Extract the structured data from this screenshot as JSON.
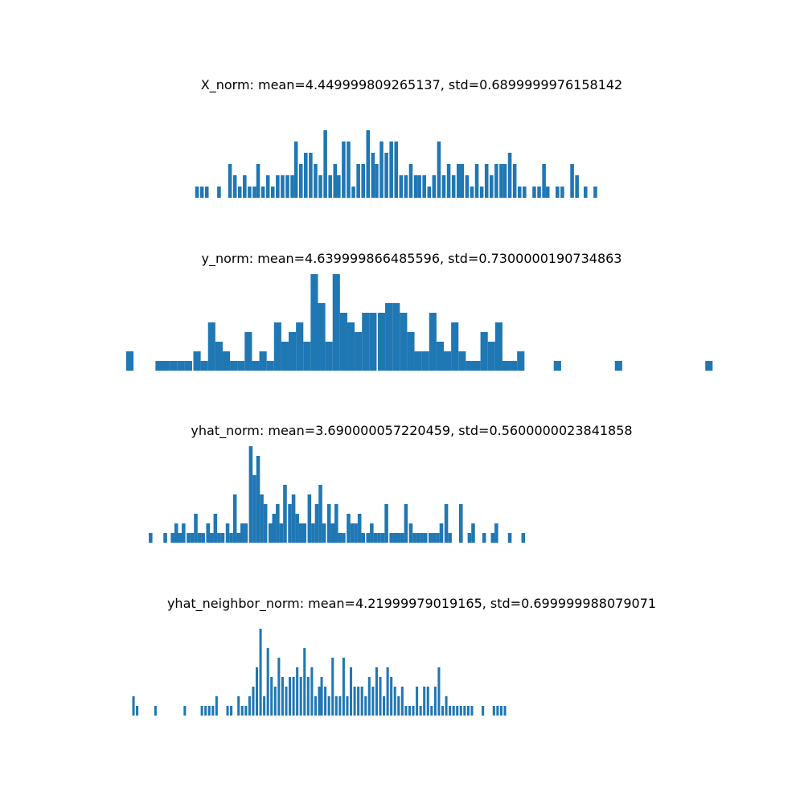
{
  "colors": {
    "bar": "#1f77b4",
    "background": "#ffffff"
  },
  "chart_data": [
    {
      "type": "bar",
      "title": "X_norm: mean=4.449999809265137, std=0.6899999976158142",
      "axis_visible": false,
      "grid": false,
      "x": [
        -0.41,
        -0.37,
        -0.33,
        -0.23,
        -0.14,
        -0.1,
        -0.06,
        -0.02,
        0.02,
        0.06,
        0.09,
        0.13,
        0.17,
        0.21,
        0.25,
        0.29,
        0.33,
        0.37,
        0.4,
        0.44,
        0.48,
        0.52,
        0.56,
        0.6,
        0.64,
        0.68,
        0.72,
        0.75,
        0.79,
        0.83,
        0.87,
        0.91,
        0.95,
        0.99,
        1.03,
        1.06,
        1.1,
        1.14,
        1.18,
        1.22,
        1.26,
        1.3,
        1.34,
        1.38,
        1.41,
        1.45,
        1.49,
        1.53,
        1.57,
        1.61,
        1.65,
        1.69,
        1.73,
        1.76,
        1.8,
        1.84,
        1.88,
        1.92,
        1.96,
        2.0,
        2.04,
        2.08,
        2.11,
        2.15,
        2.19,
        2.23,
        2.27,
        2.35,
        2.39,
        2.43,
        2.46,
        2.54,
        2.58,
        2.66,
        2.7,
        2.77,
        2.85
      ],
      "values": [
        1,
        1,
        1,
        1,
        3,
        2,
        1,
        2,
        1,
        1,
        3,
        1,
        2,
        1,
        2,
        2,
        2,
        2,
        5,
        3,
        4,
        4,
        3,
        2,
        6,
        2,
        3,
        2,
        5,
        5,
        1,
        3,
        3,
        6,
        4,
        3,
        5,
        4,
        5,
        5,
        2,
        2,
        3,
        2,
        2,
        2,
        1,
        2,
        5,
        2,
        3,
        2,
        3,
        3,
        2,
        1,
        3,
        1,
        3,
        2,
        3,
        3,
        3,
        4,
        3,
        1,
        1,
        1,
        1,
        3,
        1,
        1,
        1,
        3,
        2,
        1,
        1
      ],
      "ylim": [
        0,
        6
      ]
    },
    {
      "type": "bar",
      "title": "y_norm: mean=4.639999866485596, std=0.7300000190734863",
      "axis_visible": false,
      "grid": false,
      "x": [
        -0.96,
        -0.72,
        -0.66,
        -0.6,
        -0.54,
        -0.48,
        -0.41,
        -0.35,
        -0.29,
        -0.23,
        -0.17,
        -0.11,
        -0.05,
        0.01,
        0.07,
        0.13,
        0.19,
        0.25,
        0.31,
        0.37,
        0.43,
        0.49,
        0.55,
        0.61,
        0.67,
        0.73,
        0.79,
        0.85,
        0.91,
        0.97,
        1.03,
        1.1,
        1.16,
        1.22,
        1.28,
        1.34,
        1.4,
        1.46,
        1.52,
        1.58,
        1.64,
        1.7,
        1.76,
        1.82,
        1.88,
        1.94,
        2.0,
        2.06,
        2.12,
        2.18,
        2.24,
        2.54,
        3.04,
        3.78
      ],
      "values": [
        2,
        1,
        1,
        1,
        1,
        1,
        2,
        1,
        5,
        3,
        2,
        1,
        1,
        4,
        1,
        2,
        1,
        5,
        3,
        4,
        5,
        3,
        10,
        7,
        3,
        10,
        6,
        5,
        4,
        6,
        6,
        6,
        7,
        7,
        6,
        4,
        2,
        2,
        6,
        3,
        2,
        5,
        2,
        1,
        1,
        4,
        3,
        5,
        1,
        1,
        2,
        1,
        1,
        1
      ],
      "ylim": [
        0,
        10
      ]
    },
    {
      "type": "bar",
      "title": "yhat_norm: mean=3.690000057220459, std=0.5600000023841858",
      "axis_visible": false,
      "grid": false,
      "x": [
        -0.79,
        -0.67,
        -0.61,
        -0.58,
        -0.55,
        -0.52,
        -0.48,
        -0.45,
        -0.42,
        -0.39,
        -0.36,
        -0.32,
        -0.29,
        -0.26,
        -0.23,
        -0.2,
        -0.16,
        -0.13,
        -0.1,
        -0.07,
        -0.04,
        -0.01,
        0.03,
        0.06,
        0.09,
        0.12,
        0.15,
        0.19,
        0.22,
        0.25,
        0.28,
        0.31,
        0.35,
        0.38,
        0.41,
        0.44,
        0.47,
        0.51,
        0.54,
        0.57,
        0.6,
        0.63,
        0.67,
        0.7,
        0.73,
        0.76,
        0.79,
        0.83,
        0.86,
        0.89,
        0.92,
        0.95,
        0.99,
        1.02,
        1.05,
        1.08,
        1.11,
        1.14,
        1.18,
        1.21,
        1.24,
        1.27,
        1.3,
        1.34,
        1.37,
        1.4,
        1.43,
        1.46,
        1.5,
        1.53,
        1.56,
        1.59,
        1.63,
        1.66,
        1.75,
        1.82,
        1.85,
        1.94,
        2.01,
        2.04,
        2.15,
        2.26
      ],
      "values": [
        1,
        1,
        1,
        2,
        1,
        2,
        1,
        1,
        3,
        1,
        1,
        2,
        1,
        3,
        1,
        1,
        2,
        1,
        5,
        1,
        2,
        2,
        10,
        7,
        9,
        5,
        4,
        2,
        3,
        4,
        2,
        6,
        4,
        5,
        3,
        2,
        2,
        5,
        2,
        4,
        6,
        2,
        4,
        2,
        4,
        1,
        1,
        3,
        2,
        2,
        3,
        1,
        1,
        2,
        1,
        1,
        1,
        4,
        1,
        1,
        1,
        1,
        4,
        2,
        1,
        1,
        1,
        1,
        1,
        1,
        1,
        2,
        4,
        1,
        4,
        1,
        2,
        1,
        1,
        2,
        1,
        1
      ],
      "ylim": [
        0,
        10
      ]
    },
    {
      "type": "bar",
      "title": "yhat_neighbor_norm: mean=4.21999979019165, std=0.699999988079071",
      "axis_visible": false,
      "grid": false,
      "x": [
        -0.93,
        -0.9,
        -0.75,
        -0.51,
        -0.37,
        -0.34,
        -0.31,
        -0.28,
        -0.25,
        -0.16,
        -0.13,
        -0.07,
        -0.04,
        -0.01,
        0.02,
        0.05,
        0.08,
        0.11,
        0.14,
        0.17,
        0.2,
        0.23,
        0.26,
        0.29,
        0.32,
        0.35,
        0.38,
        0.41,
        0.44,
        0.47,
        0.5,
        0.53,
        0.56,
        0.59,
        0.61,
        0.64,
        0.67,
        0.7,
        0.73,
        0.76,
        0.79,
        0.82,
        0.85,
        0.88,
        0.91,
        0.94,
        0.97,
        1.0,
        1.03,
        1.06,
        1.09,
        1.12,
        1.15,
        1.18,
        1.21,
        1.24,
        1.27,
        1.3,
        1.33,
        1.36,
        1.39,
        1.42,
        1.45,
        1.48,
        1.51,
        1.54,
        1.57,
        1.6,
        1.63,
        1.66,
        1.69,
        1.72,
        1.75,
        1.78,
        1.81,
        1.84,
        1.93,
        2.02,
        2.05,
        2.08,
        2.11
      ],
      "values": [
        2,
        1,
        1,
        1,
        1,
        1,
        1,
        1,
        2,
        1,
        1,
        2,
        1,
        1,
        2,
        3,
        5,
        9,
        2,
        7,
        4,
        3,
        6,
        4,
        3,
        4,
        4,
        5,
        4,
        7,
        4,
        5,
        2,
        3,
        4,
        3,
        2,
        6,
        2,
        2,
        6,
        2,
        5,
        3,
        3,
        3,
        2,
        4,
        3,
        5,
        4,
        2,
        5,
        4,
        3,
        2,
        3,
        1,
        1,
        1,
        3,
        1,
        3,
        3,
        1,
        3,
        5,
        1,
        2,
        1,
        1,
        1,
        1,
        1,
        1,
        1,
        1,
        1,
        1,
        1,
        1
      ],
      "ylim": [
        0,
        9
      ]
    }
  ]
}
